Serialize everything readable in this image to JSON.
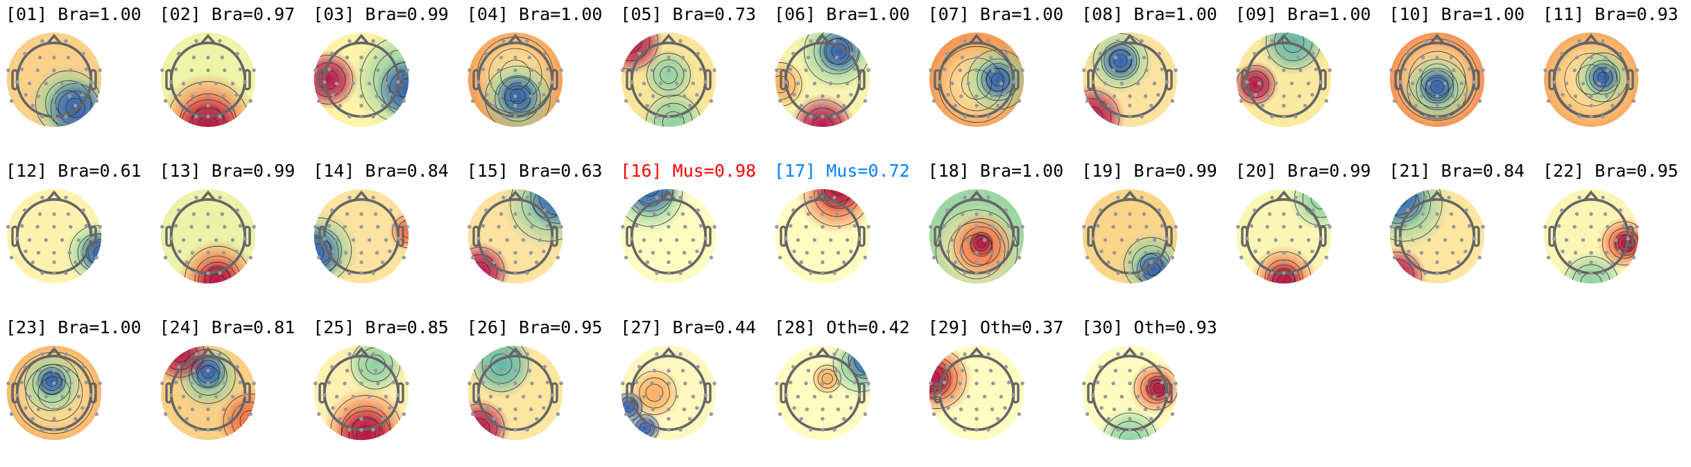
{
  "chart_data": {
    "type": "heatmap",
    "colormap": "Spectral_r",
    "layout": "grid of scalp topographic maps, 11 per row",
    "title_colors": {
      "default": "#000000",
      "muscle_high": "#ff0000",
      "muscle_low": "#0080ff"
    },
    "components": [
      {
        "title": "[01] Bra=1.00",
        "label": "Bra",
        "prob": 1.0
      },
      {
        "title": "[02] Bra=0.97",
        "label": "Bra",
        "prob": 0.97
      },
      {
        "title": "[03] Bra=0.99",
        "label": "Bra",
        "prob": 0.99
      },
      {
        "title": "[04] Bra=1.00",
        "label": "Bra",
        "prob": 1.0
      },
      {
        "title": "[05] Bra=0.73",
        "label": "Bra",
        "prob": 0.73
      },
      {
        "title": "[06] Bra=1.00",
        "label": "Bra",
        "prob": 1.0
      },
      {
        "title": "[07] Bra=1.00",
        "label": "Bra",
        "prob": 1.0
      },
      {
        "title": "[08] Bra=1.00",
        "label": "Bra",
        "prob": 1.0
      },
      {
        "title": "[09] Bra=1.00",
        "label": "Bra",
        "prob": 1.0
      },
      {
        "title": "[10] Bra=1.00",
        "label": "Bra",
        "prob": 1.0
      },
      {
        "title": "[11] Bra=0.93",
        "label": "Bra",
        "prob": 0.93
      },
      {
        "title": "[12] Bra=0.61",
        "label": "Bra",
        "prob": 0.61
      },
      {
        "title": "[13] Bra=0.99",
        "label": "Bra",
        "prob": 0.99
      },
      {
        "title": "[14] Bra=0.84",
        "label": "Bra",
        "prob": 0.84
      },
      {
        "title": "[15] Bra=0.63",
        "label": "Bra",
        "prob": 0.63
      },
      {
        "title": "[16] Mus=0.98",
        "label": "Mus",
        "prob": 0.98,
        "color": "#ff0000"
      },
      {
        "title": "[17] Mus=0.72",
        "label": "Mus",
        "prob": 0.72,
        "color": "#0080ff"
      },
      {
        "title": "[18] Bra=1.00",
        "label": "Bra",
        "prob": 1.0
      },
      {
        "title": "[19] Bra=0.99",
        "label": "Bra",
        "prob": 0.99
      },
      {
        "title": "[20] Bra=0.99",
        "label": "Bra",
        "prob": 0.99
      },
      {
        "title": "[21] Bra=0.84",
        "label": "Bra",
        "prob": 0.84
      },
      {
        "title": "[22] Bra=0.95",
        "label": "Bra",
        "prob": 0.95
      },
      {
        "title": "[23] Bra=1.00",
        "label": "Bra",
        "prob": 1.0
      },
      {
        "title": "[24] Bra=0.81",
        "label": "Bra",
        "prob": 0.81
      },
      {
        "title": "[25] Bra=0.85",
        "label": "Bra",
        "prob": 0.85
      },
      {
        "title": "[26] Bra=0.95",
        "label": "Bra",
        "prob": 0.95
      },
      {
        "title": "[27] Bra=0.44",
        "label": "Bra",
        "prob": 0.44
      },
      {
        "title": "[28] Oth=0.42",
        "label": "Oth",
        "prob": 0.42
      },
      {
        "title": "[29] Oth=0.37",
        "label": "Oth",
        "prob": 0.37
      },
      {
        "title": "[30] Oth=0.93",
        "label": "Oth",
        "prob": 0.93
      }
    ]
  }
}
